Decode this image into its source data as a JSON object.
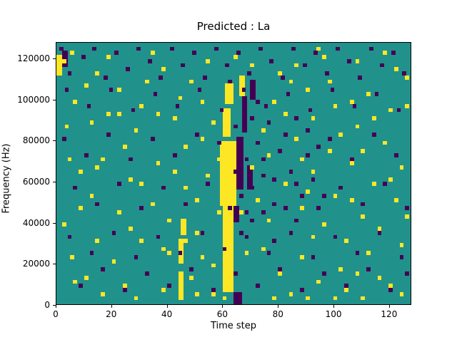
{
  "figure": {
    "title": "Predicted : La",
    "xlabel": "Time step",
    "ylabel": "Frequency (Hz)"
  },
  "chart_data": {
    "type": "heatmap",
    "title": "Predicted : La",
    "xlabel": "Time step",
    "ylabel": "Frequency (Hz)",
    "xlim": [
      0,
      128
    ],
    "ylim": [
      0,
      128000
    ],
    "x_ticks": [
      0,
      20,
      40,
      60,
      80,
      100,
      120
    ],
    "y_ticks": [
      0,
      20000,
      40000,
      60000,
      80000,
      100000,
      120000
    ],
    "grid_size": {
      "cols": 128,
      "rows": 128
    },
    "y_bin_hz": 1000,
    "cell_size": {
      "w": 1.5,
      "h": 2
    },
    "colors": {
      "background": "#21918c",
      "yellow": "#fde725",
      "purple": "#440154"
    },
    "legend": "none",
    "rects": [
      {
        "c": "y",
        "x": 60,
        "y": 6,
        "w": 4,
        "h": 42
      },
      {
        "c": "y",
        "x": 59,
        "y": 48,
        "w": 6,
        "h": 32
      },
      {
        "c": "y",
        "x": 60,
        "y": 82,
        "w": 3,
        "h": 14
      },
      {
        "c": "y",
        "x": 61,
        "y": 98,
        "w": 3,
        "h": 10
      },
      {
        "c": "p",
        "x": 64,
        "y": 40,
        "w": 2,
        "h": 8
      },
      {
        "c": "p",
        "x": 65,
        "y": 56,
        "w": 2.5,
        "h": 26
      },
      {
        "c": "p",
        "x": 64,
        "y": 0,
        "w": 3,
        "h": 6
      },
      {
        "c": "p",
        "x": 67,
        "y": 84,
        "w": 2,
        "h": 18
      },
      {
        "c": "y",
        "x": 66,
        "y": 102,
        "w": 2,
        "h": 10
      },
      {
        "c": "y",
        "x": 44,
        "y": 2,
        "w": 2,
        "h": 14
      },
      {
        "c": "y",
        "x": 44,
        "y": 20,
        "w": 2,
        "h": 12
      },
      {
        "c": "y",
        "x": 45,
        "y": 34,
        "w": 2,
        "h": 8
      },
      {
        "c": "p",
        "x": 69,
        "y": 56,
        "w": 2,
        "h": 12
      },
      {
        "c": "p",
        "x": 70,
        "y": 100,
        "w": 2,
        "h": 10
      },
      {
        "c": "y",
        "x": 0,
        "y": 112,
        "w": 2,
        "h": 10
      },
      {
        "c": "p",
        "x": 2,
        "y": 116,
        "w": 2,
        "h": 8
      }
    ],
    "points": {
      "yellow": [
        [
          2,
          118
        ],
        [
          6,
          98
        ],
        [
          3,
          86
        ],
        [
          8,
          64
        ],
        [
          2,
          38
        ],
        [
          5,
          22
        ],
        [
          10,
          12
        ],
        [
          14,
          30
        ],
        [
          12,
          52
        ],
        [
          16,
          70
        ],
        [
          18,
          92
        ],
        [
          14,
          112
        ],
        [
          20,
          20
        ],
        [
          22,
          44
        ],
        [
          24,
          8
        ],
        [
          26,
          60
        ],
        [
          28,
          84
        ],
        [
          22,
          104
        ],
        [
          30,
          30
        ],
        [
          32,
          14
        ],
        [
          34,
          48
        ],
        [
          30,
          96
        ],
        [
          36,
          68
        ],
        [
          38,
          6
        ],
        [
          38,
          114
        ],
        [
          40,
          40
        ],
        [
          42,
          90
        ],
        [
          40,
          24
        ],
        [
          46,
          56
        ],
        [
          48,
          12
        ],
        [
          46,
          76
        ],
        [
          50,
          34
        ],
        [
          52,
          98
        ],
        [
          50,
          4
        ],
        [
          54,
          62
        ],
        [
          56,
          18
        ],
        [
          54,
          118
        ],
        [
          58,
          44
        ],
        [
          56,
          88
        ],
        [
          72,
          50
        ],
        [
          74,
          26
        ],
        [
          72,
          8
        ],
        [
          76,
          72
        ],
        [
          78,
          98
        ],
        [
          76,
          40
        ],
        [
          80,
          14
        ],
        [
          82,
          58
        ],
        [
          80,
          112
        ],
        [
          84,
          34
        ],
        [
          86,
          80
        ],
        [
          84,
          4
        ],
        [
          88,
          46
        ],
        [
          90,
          104
        ],
        [
          88,
          22
        ],
        [
          92,
          64
        ],
        [
          94,
          10
        ],
        [
          92,
          90
        ],
        [
          96,
          38
        ],
        [
          98,
          74
        ],
        [
          96,
          120
        ],
        [
          100,
          52
        ],
        [
          102,
          16
        ],
        [
          100,
          96
        ],
        [
          104,
          30
        ],
        [
          106,
          68
        ],
        [
          104,
          6
        ],
        [
          108,
          86
        ],
        [
          110,
          42
        ],
        [
          108,
          118
        ],
        [
          112,
          24
        ],
        [
          114,
          58
        ],
        [
          112,
          102
        ],
        [
          116,
          12
        ],
        [
          118,
          78
        ],
        [
          116,
          36
        ],
        [
          120,
          94
        ],
        [
          122,
          50
        ],
        [
          120,
          8
        ],
        [
          124,
          66
        ],
        [
          126,
          110
        ],
        [
          124,
          28
        ],
        [
          5,
          122
        ],
        [
          18,
          120
        ],
        [
          34,
          122
        ],
        [
          48,
          108
        ],
        [
          64,
          120
        ],
        [
          86,
          116
        ],
        [
          98,
          108
        ],
        [
          118,
          122
        ],
        [
          8,
          46
        ],
        [
          26,
          36
        ],
        [
          44,
          100
        ],
        [
          58,
          70
        ],
        [
          70,
          116
        ],
        [
          90,
          2
        ],
        [
          110,
          74
        ],
        [
          16,
          4
        ],
        [
          36,
          92
        ],
        [
          52,
          80
        ],
        [
          78,
          2
        ],
        [
          94,
          124
        ],
        [
          106,
          50
        ],
        [
          122,
          114
        ],
        [
          4,
          70
        ],
        [
          24,
          76
        ],
        [
          42,
          64
        ],
        [
          60,
          2
        ],
        [
          82,
          92
        ],
        [
          100,
          2
        ],
        [
          114,
          90
        ],
        [
          12,
          88
        ],
        [
          30,
          58
        ],
        [
          50,
          50
        ],
        [
          68,
          24
        ],
        [
          88,
          70
        ],
        [
          108,
          14
        ],
        [
          126,
          42
        ],
        [
          10,
          106
        ],
        [
          28,
          2
        ],
        [
          46,
          30
        ],
        [
          66,
          44
        ],
        [
          84,
          108
        ],
        [
          102,
          82
        ],
        [
          120,
          60
        ],
        [
          6,
          10
        ],
        [
          22,
          92
        ],
        [
          38,
          26
        ],
        [
          56,
          4
        ],
        [
          74,
          84
        ],
        [
          92,
          32
        ],
        [
          110,
          2
        ],
        [
          126,
          96
        ],
        [
          14,
          66
        ],
        [
          32,
          108
        ],
        [
          52,
          22
        ],
        [
          70,
          66
        ],
        [
          90,
          54
        ],
        [
          106,
          98
        ],
        [
          124,
          4
        ]
      ],
      "purple": [
        [
          1,
          124
        ],
        [
          4,
          112
        ],
        [
          9,
          120
        ],
        [
          13,
          124
        ],
        [
          17,
          110
        ],
        [
          21,
          122
        ],
        [
          25,
          114
        ],
        [
          29,
          124
        ],
        [
          33,
          118
        ],
        [
          37,
          110
        ],
        [
          41,
          124
        ],
        [
          45,
          116
        ],
        [
          49,
          122
        ],
        [
          53,
          110
        ],
        [
          57,
          124
        ],
        [
          61,
          116
        ],
        [
          65,
          122
        ],
        [
          69,
          112
        ],
        [
          73,
          124
        ],
        [
          77,
          118
        ],
        [
          81,
          110
        ],
        [
          85,
          124
        ],
        [
          89,
          116
        ],
        [
          93,
          122
        ],
        [
          97,
          112
        ],
        [
          101,
          124
        ],
        [
          105,
          118
        ],
        [
          109,
          110
        ],
        [
          113,
          124
        ],
        [
          117,
          116
        ],
        [
          121,
          122
        ],
        [
          125,
          112
        ],
        [
          3,
          104
        ],
        [
          11,
          96
        ],
        [
          19,
          104
        ],
        [
          27,
          94
        ],
        [
          35,
          102
        ],
        [
          43,
          96
        ],
        [
          51,
          104
        ],
        [
          59,
          94
        ],
        [
          67,
          104
        ],
        [
          75,
          96
        ],
        [
          83,
          102
        ],
        [
          91,
          94
        ],
        [
          99,
          104
        ],
        [
          107,
          96
        ],
        [
          115,
          102
        ],
        [
          123,
          94
        ],
        [
          2,
          80
        ],
        [
          10,
          72
        ],
        [
          18,
          82
        ],
        [
          26,
          70
        ],
        [
          34,
          80
        ],
        [
          42,
          72
        ],
        [
          50,
          82
        ],
        [
          58,
          78
        ],
        [
          66,
          80
        ],
        [
          74,
          70
        ],
        [
          82,
          82
        ],
        [
          90,
          72
        ],
        [
          98,
          80
        ],
        [
          106,
          70
        ],
        [
          114,
          82
        ],
        [
          122,
          72
        ],
        [
          6,
          56
        ],
        [
          14,
          48
        ],
        [
          22,
          58
        ],
        [
          30,
          46
        ],
        [
          38,
          56
        ],
        [
          46,
          48
        ],
        [
          54,
          58
        ],
        [
          62,
          46
        ],
        [
          70,
          56
        ],
        [
          78,
          48
        ],
        [
          86,
          58
        ],
        [
          94,
          46
        ],
        [
          102,
          56
        ],
        [
          110,
          48
        ],
        [
          118,
          58
        ],
        [
          126,
          46
        ],
        [
          4,
          32
        ],
        [
          12,
          24
        ],
        [
          20,
          34
        ],
        [
          28,
          22
        ],
        [
          36,
          32
        ],
        [
          44,
          24
        ],
        [
          52,
          34
        ],
        [
          60,
          26
        ],
        [
          68,
          32
        ],
        [
          76,
          24
        ],
        [
          84,
          34
        ],
        [
          92,
          22
        ],
        [
          100,
          32
        ],
        [
          108,
          24
        ],
        [
          116,
          34
        ],
        [
          124,
          22
        ],
        [
          8,
          8
        ],
        [
          16,
          16
        ],
        [
          24,
          6
        ],
        [
          32,
          14
        ],
        [
          40,
          8
        ],
        [
          48,
          16
        ],
        [
          56,
          6
        ],
        [
          64,
          14
        ],
        [
          72,
          8
        ],
        [
          80,
          16
        ],
        [
          88,
          6
        ],
        [
          96,
          14
        ],
        [
          104,
          8
        ],
        [
          112,
          16
        ],
        [
          120,
          6
        ],
        [
          126,
          14
        ],
        [
          70,
          90
        ],
        [
          72,
          78
        ],
        [
          74,
          62
        ],
        [
          76,
          88
        ],
        [
          68,
          70
        ],
        [
          66,
          52
        ],
        [
          78,
          60
        ],
        [
          80,
          74
        ],
        [
          82,
          46
        ],
        [
          84,
          64
        ],
        [
          86,
          90
        ],
        [
          88,
          52
        ],
        [
          90,
          84
        ],
        [
          92,
          60
        ],
        [
          94,
          76
        ],
        [
          96,
          52
        ],
        [
          86,
          40
        ],
        [
          78,
          30
        ],
        [
          70,
          40
        ],
        [
          64,
          86
        ],
        [
          68,
          44
        ],
        [
          72,
          98
        ],
        [
          66,
          34
        ],
        [
          74,
          44
        ],
        [
          62,
          108
        ],
        [
          64,
          64
        ]
      ]
    }
  }
}
